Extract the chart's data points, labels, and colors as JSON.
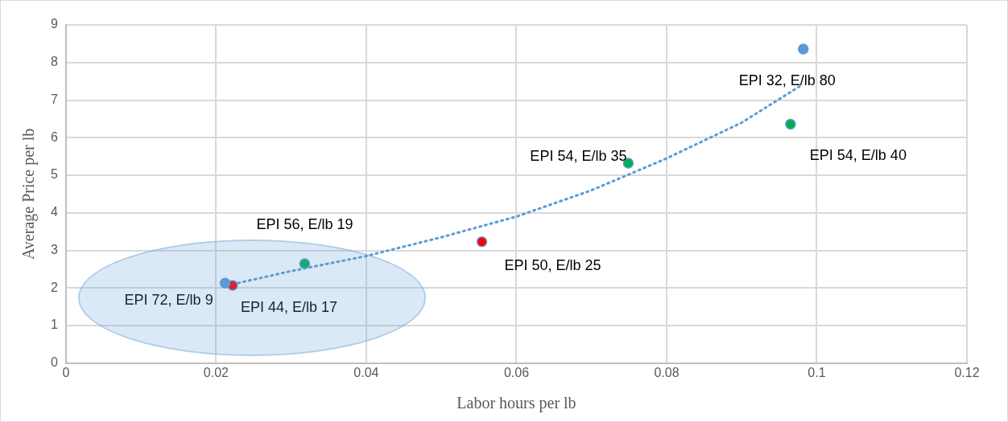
{
  "chart_data": {
    "type": "scatter",
    "xlabel": "Labor hours per lb",
    "ylabel": "Average Price per lb",
    "xlim": [
      0,
      0.12
    ],
    "xticks": [
      0,
      0.02,
      0.04,
      0.06,
      0.08,
      0.1,
      0.12
    ],
    "ylim": [
      0,
      9
    ],
    "yticks": [
      0,
      1,
      2,
      3,
      4,
      5,
      6,
      7,
      8,
      9
    ],
    "grid": true,
    "legend": false,
    "marker": "circle",
    "series": [
      {
        "color": "#5b9bd5",
        "x": [
          0.0212,
          0.0982
        ],
        "values": [
          2.13,
          8.36
        ]
      },
      {
        "color": "#ff0000",
        "x": [
          0.0222,
          0.0554
        ],
        "values": [
          2.07,
          3.23
        ]
      },
      {
        "color": "#00b050",
        "x": [
          0.0318,
          0.0749,
          0.0965
        ],
        "values": [
          2.65,
          5.32,
          6.36
        ]
      },
      {
        "type": "line",
        "color": "#5b9bd5",
        "line_style": "dotted",
        "marker": "none",
        "x": [
          0.0222,
          0.03,
          0.04,
          0.05,
          0.06,
          0.07,
          0.08,
          0.09,
          0.098
        ],
        "values": [
          2.1,
          2.45,
          2.85,
          3.35,
          3.9,
          4.6,
          5.45,
          6.4,
          7.4
        ]
      }
    ],
    "annotations": [
      {
        "text": "EPI 72, E/lb 9",
        "x": 0.0212,
        "y": 2.13
      },
      {
        "text": "EPI 44, E/lb 17",
        "x": 0.0222,
        "y": 2.07
      },
      {
        "text": "EPI 56, E/lb 19",
        "x": 0.0318,
        "y": 2.65
      },
      {
        "text": "EPI 50, E/lb 25",
        "x": 0.0554,
        "y": 3.23
      },
      {
        "text": "EPI 54, E/lb 35",
        "x": 0.0749,
        "y": 5.32
      },
      {
        "text": "EPI 54, E/lb 40",
        "x": 0.0965,
        "y": 6.36
      },
      {
        "text": "EPI 32, E/lb 80",
        "x": 0.0982,
        "y": 8.36
      }
    ]
  }
}
